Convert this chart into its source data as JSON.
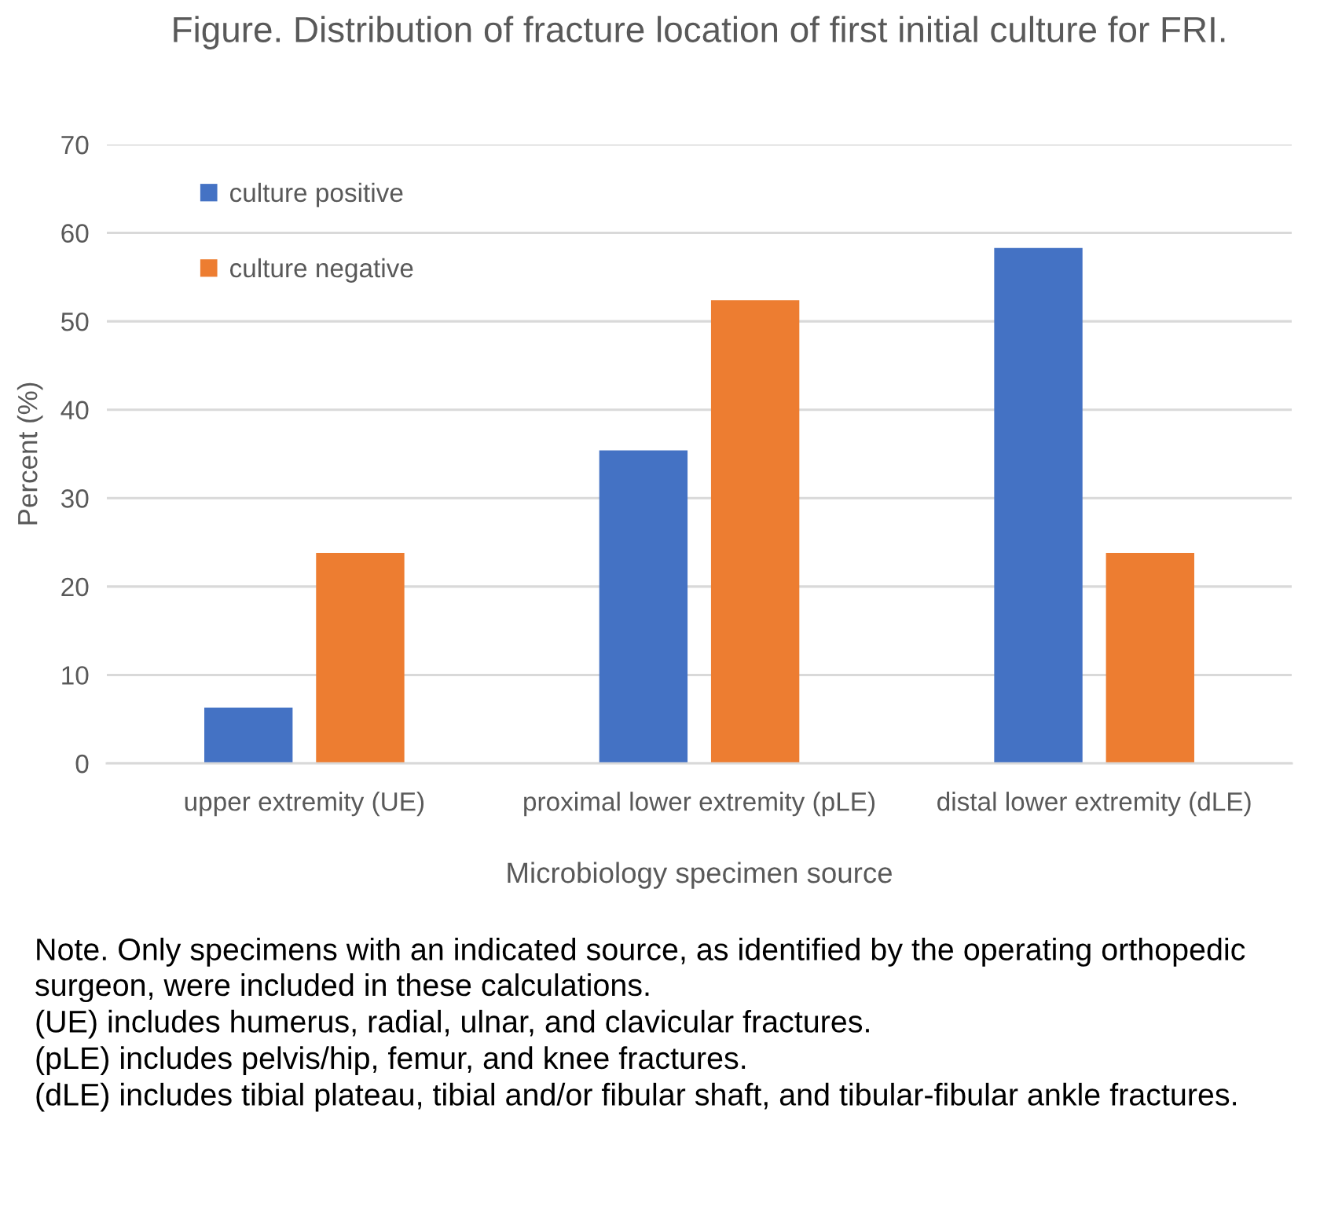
{
  "chart_data": {
    "type": "bar",
    "title": "Figure. Distribution of fracture location of first initial culture for FRI.",
    "xlabel": "Microbiology specimen source",
    "ylabel": "Percent (%)",
    "categories": [
      "upper extremity (UE)",
      "proximal lower extremity (pLE)",
      "distal lower extremity (dLE)"
    ],
    "series": [
      {
        "name": "culture positive",
        "color": "#4472c4",
        "values": [
          6.3,
          35.4,
          58.3
        ]
      },
      {
        "name": "culture negative",
        "color": "#ed7d31",
        "values": [
          23.8,
          52.4,
          23.8
        ]
      }
    ],
    "ylim": [
      0,
      70
    ],
    "yticks": [
      0,
      10,
      20,
      30,
      40,
      50,
      60,
      70
    ],
    "grid": "y",
    "legend": "top left",
    "annotations": [
      "Note. Only specimens with an indicated source, as identified by the operating orthopedic surgeon, were included in these calculations.",
      "(UE) includes humerus, radial, ulnar, and clavicular fractures.",
      "(pLE) includes pelvis/hip, femur, and knee fractures.",
      "(dLE) includes tibial plateau, tibial and/or fibular shaft, and tibular-fibular ankle fractures."
    ]
  }
}
